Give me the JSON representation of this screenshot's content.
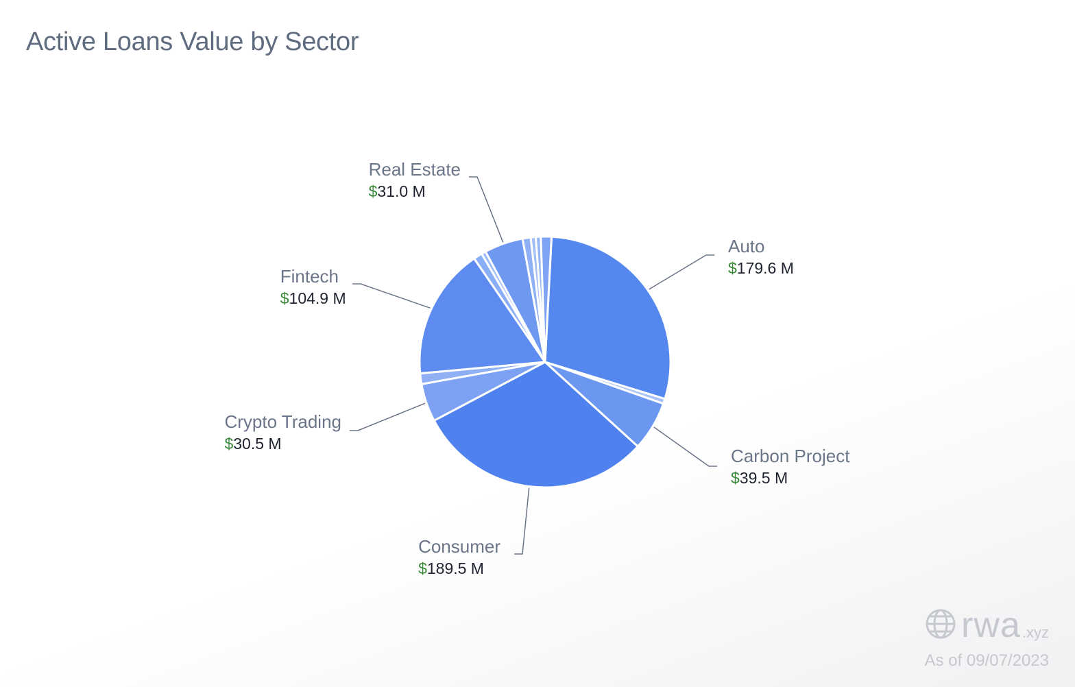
{
  "title": "Active Loans Value by Sector",
  "chart_data": {
    "type": "pie",
    "currency_color": "#3a8a3a",
    "label_color": "#6b7588",
    "value_color": "#1f2330",
    "slices": [
      {
        "label": "Auto",
        "value": 179.6,
        "display": "179.6 M",
        "color": "#5588ee"
      },
      {
        "label": "",
        "value": 4.0,
        "display": "",
        "color": "#a8c2f5"
      },
      {
        "label": "Carbon Project",
        "value": 39.5,
        "display": "39.5 M",
        "color": "#6b97f0"
      },
      {
        "label": "Consumer",
        "value": 189.5,
        "display": "189.5 M",
        "color": "#4f81ef"
      },
      {
        "label": "Crypto Trading",
        "value": 30.5,
        "display": "30.5 M",
        "color": "#7da2f3"
      },
      {
        "label": "",
        "value": 8.5,
        "display": "",
        "color": "#8fb0f4"
      },
      {
        "label": "Fintech",
        "value": 104.9,
        "display": "104.9 M",
        "color": "#5d8bf0"
      },
      {
        "label": "",
        "value": 7.0,
        "display": "",
        "color": "#8aaef5"
      },
      {
        "label": "",
        "value": 3.5,
        "display": "",
        "color": "#9bbaf6"
      },
      {
        "label": "Real Estate",
        "value": 31.0,
        "display": "31.0 M",
        "color": "#6f99f1"
      },
      {
        "label": "",
        "value": 6.5,
        "display": "",
        "color": "#8fb0f4"
      },
      {
        "label": "",
        "value": 4.0,
        "display": "",
        "color": "#a1bdf5"
      },
      {
        "label": "",
        "value": 4.0,
        "display": "",
        "color": "#96b5f5"
      },
      {
        "label": "",
        "value": 8.5,
        "display": "",
        "color": "#7ea3f3"
      }
    ]
  },
  "watermark": {
    "brand": "rwa",
    "brand_suffix": ".xyz",
    "icon": "globe-icon",
    "as_of": "As of 09/07/2023"
  }
}
